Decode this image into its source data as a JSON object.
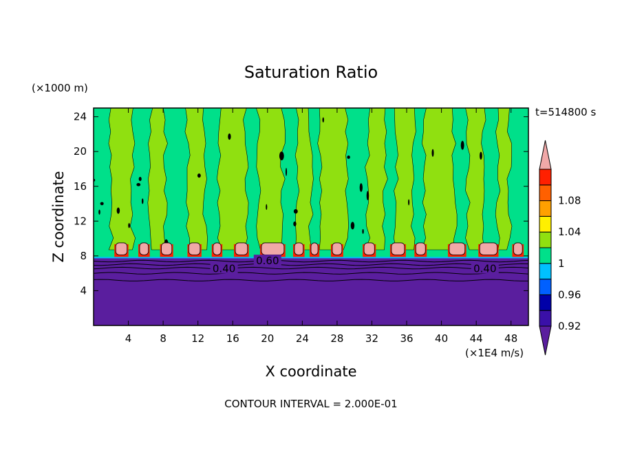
{
  "chart_data": {
    "type": "heatmap",
    "title": "Saturation Ratio",
    "xlabel": "X coordinate",
    "ylabel": "Z coordinate",
    "x_unit": "(×1E4 m/s)",
    "y_unit": "(×1000 m)",
    "time_label": "t=514800 s",
    "footer": "CONTOUR INTERVAL = 2.000E-01",
    "xlim": [
      0,
      50
    ],
    "ylim": [
      0,
      25
    ],
    "x_ticks": [
      4,
      8,
      12,
      16,
      20,
      24,
      28,
      32,
      36,
      40,
      44,
      48
    ],
    "y_ticks": [
      4,
      8,
      12,
      16,
      20,
      24
    ],
    "x_tick_labels": [
      "4",
      "8",
      "12",
      "16",
      "20",
      "24",
      "28",
      "32",
      "36",
      "40",
      "44",
      "48"
    ],
    "y_tick_labels": [
      "4",
      "8",
      "12",
      "16",
      "20",
      "24"
    ],
    "boundary_layer_top": 7.8,
    "contour_labels": [
      {
        "text": "0.40",
        "x": 15,
        "y": 6.6
      },
      {
        "text": "0.60",
        "x": 20,
        "y": 7.5
      },
      {
        "text": "0.40",
        "x": 45,
        "y": 6.6
      }
    ],
    "colorbar": {
      "levels": [
        0.92,
        0.94,
        0.96,
        0.98,
        1.0,
        1.02,
        1.04,
        1.06,
        1.08,
        1.1
      ],
      "labels": [
        "0.92",
        "0.96",
        "1",
        "1.04",
        "1.08"
      ],
      "colors": [
        "#5a1e9e",
        "#3a10a8",
        "#0000a8",
        "#0060ff",
        "#00c0ff",
        "#00e08a",
        "#90e010",
        "#fff000",
        "#ffa000",
        "#ff6000",
        "#ff2000",
        "#f0a8a8"
      ]
    },
    "column_bands": [
      {
        "x0": 2.0,
        "x1": 4.5
      },
      {
        "x0": 6.5,
        "x1": 8.2
      },
      {
        "x0": 10.8,
        "x1": 12.8
      },
      {
        "x0": 14.5,
        "x1": 17.5
      },
      {
        "x0": 19.0,
        "x1": 21.8
      },
      {
        "x0": 23.5,
        "x1": 25.0
      },
      {
        "x0": 26.0,
        "x1": 29.0
      },
      {
        "x0": 31.5,
        "x1": 33.5
      },
      {
        "x0": 34.8,
        "x1": 36.8
      },
      {
        "x0": 38.0,
        "x1": 41.5
      },
      {
        "x0": 43.0,
        "x1": 44.8
      },
      {
        "x0": 46.5,
        "x1": 47.8
      }
    ],
    "supersat_blobs": [
      {
        "x": 3.2,
        "w": 1.3
      },
      {
        "x": 5.8,
        "w": 1.0
      },
      {
        "x": 8.4,
        "w": 1.2
      },
      {
        "x": 11.6,
        "w": 1.3
      },
      {
        "x": 14.2,
        "w": 0.9
      },
      {
        "x": 17.0,
        "w": 1.4
      },
      {
        "x": 20.6,
        "w": 2.6
      },
      {
        "x": 23.6,
        "w": 1.0
      },
      {
        "x": 25.4,
        "w": 0.8
      },
      {
        "x": 28.0,
        "w": 1.1
      },
      {
        "x": 31.7,
        "w": 1.2
      },
      {
        "x": 35.0,
        "w": 1.5
      },
      {
        "x": 37.6,
        "w": 1.1
      },
      {
        "x": 41.8,
        "w": 1.8
      },
      {
        "x": 45.4,
        "w": 2.0
      },
      {
        "x": 48.8,
        "w": 1.0
      }
    ]
  }
}
